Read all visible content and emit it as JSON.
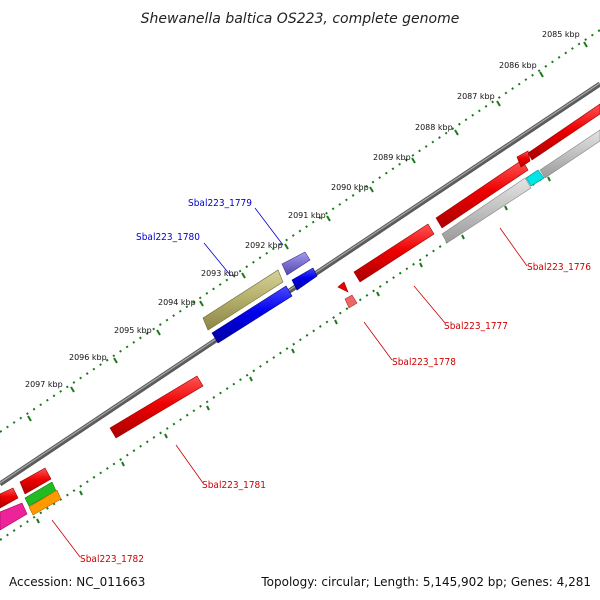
{
  "title": "Shewanella baltica OS223, complete genome",
  "accession": "Accession: NC_011663",
  "topology": "Topology: circular; Length: 5,145,902 bp; Genes: 4,281",
  "ticks": [
    {
      "label": "2085 kbp"
    },
    {
      "label": "2086 kbp"
    },
    {
      "label": "2087 kbp"
    },
    {
      "label": "2088 kbp"
    },
    {
      "label": "2089 kbp"
    },
    {
      "label": "2090 kbp"
    },
    {
      "label": "2091 kbp"
    },
    {
      "label": "2092 kbp"
    },
    {
      "label": "2093 kbp"
    },
    {
      "label": "2094 kbp"
    },
    {
      "label": "2095 kbp"
    },
    {
      "label": "2096 kbp"
    },
    {
      "label": "2097 kbp"
    }
  ],
  "genes": [
    {
      "name": "Sbal223_1776",
      "color": "#cc0000"
    },
    {
      "name": "Sbal223_1777",
      "color": "#cc0000"
    },
    {
      "name": "Sbal223_1778",
      "color": "#cc0000"
    },
    {
      "name": "Sbal223_1779",
      "color": "#0000cc"
    },
    {
      "name": "Sbal223_1780",
      "color": "#0000cc"
    },
    {
      "name": "Sbal223_1781",
      "color": "#cc0000"
    },
    {
      "name": "Sbal223_1782",
      "color": "#cc0000"
    }
  ],
  "colors": {
    "backbone": "#777777",
    "tick": "#1a7a1a",
    "red": "#ee0000",
    "blue": "#0000ee",
    "gray": "#c0c0c0",
    "olive": "#b3ad6a",
    "purple": "#7b70d0",
    "cyan": "#00e5e5",
    "green": "#22bb22",
    "orange": "#ff9900",
    "magenta": "#ee2299",
    "pink": "#ee6666"
  }
}
